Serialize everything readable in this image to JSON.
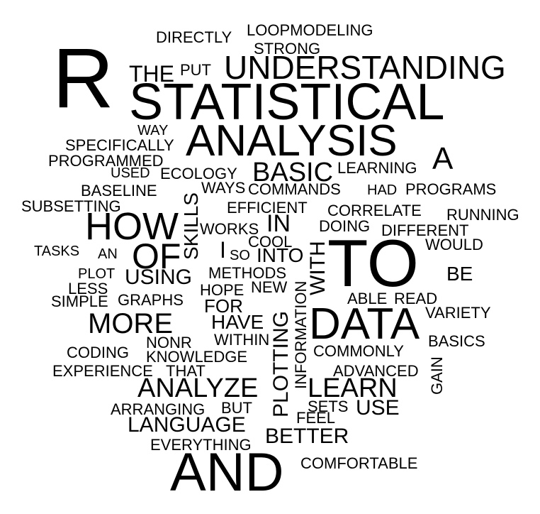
{
  "word_cloud": {
    "text_color": "#000000",
    "background_color": "#ffffff",
    "words": [
      "R",
      "STATISTICAL",
      "ANALYSIS",
      "UNDERSTANDING",
      "TO",
      "DATA",
      "AND",
      "HOW",
      "OF",
      "BASIC",
      "MORE",
      "ANALYZE",
      "LEARN",
      "LANGUAGE",
      "BETTER",
      "PLOTTING",
      "INFORMATION",
      "WITH",
      "IN",
      "SKILLS",
      "A",
      "THE",
      "PUT",
      "DIRECTLY",
      "LOOPMODELING",
      "STRONG",
      "WAY",
      "SPECIFICALLY",
      "PROGRAMMED",
      "USED",
      "ECOLOGY",
      "LEARNING",
      "BASELINE",
      "WAYS",
      "COMMANDS",
      "HAD",
      "PROGRAMS",
      "SUBSETTING",
      "EFFICIENT",
      "CORRELATE",
      "RUNNING",
      "WORKS",
      "DOING",
      "DIFFERENT",
      "COOL",
      "TASKS",
      "AN",
      "I",
      "SO",
      "INTO",
      "WOULD",
      "PLOT",
      "USING",
      "METHODS",
      "BE",
      "LESS",
      "HOPE",
      "NEW",
      "SIMPLE",
      "GRAPHS",
      "ABLE",
      "READ",
      "FOR",
      "VARIETY",
      "HAVE",
      "NONR",
      "WITHIN",
      "BASICS",
      "CODING",
      "KNOWLEDGE",
      "COMMONLY",
      "EXPERIENCE",
      "THAT",
      "ADVANCED",
      "GAIN",
      "ARRANGING",
      "BUT",
      "SETS",
      "USE",
      "FEEL",
      "EVERYTHING",
      "COMFORTABLE"
    ]
  }
}
